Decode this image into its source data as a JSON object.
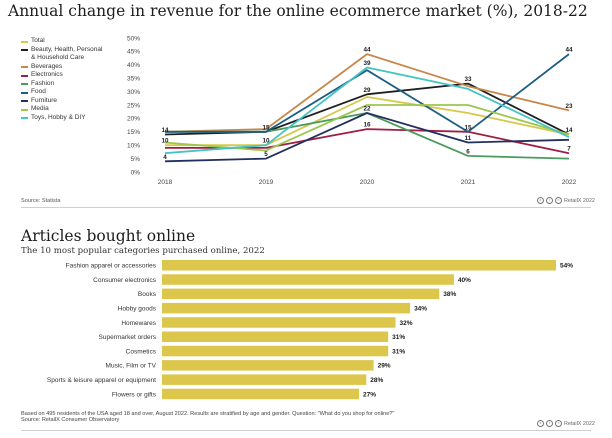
{
  "top": {
    "title": "Annual change in revenue for the online ecommerce market (%), 2018-22",
    "source": "Source: Statista",
    "brand": "RetailX 2022"
  },
  "legend": [
    {
      "name": "Total",
      "color": "#d6c84a"
    },
    {
      "name": "Beauty, Health, Personal",
      "name2": "& Household Care",
      "color": "#1f1f1f"
    },
    {
      "name": "Beverages",
      "color": "#c8874a"
    },
    {
      "name": "Electronics",
      "color": "#a01e44"
    },
    {
      "name": "Fashion",
      "color": "#4a9b5c"
    },
    {
      "name": "Food",
      "color": "#1e5f86"
    },
    {
      "name": "Furniture",
      "color": "#23305f"
    },
    {
      "name": "Media",
      "color": "#9dc64c"
    },
    {
      "name": "Toys, Hobby & DIY",
      "color": "#46c4c4"
    }
  ],
  "bottom": {
    "title": "Articles bought online",
    "subtitle": "The 10 most popular categories purchased online, 2022",
    "note": "Based on 495 residents of the USA aged 18 and over, August 2022. Results are stratified by age and gender. Question: \"What do you shop for online?\"",
    "source": "Source: RetailX Consumer Observatory",
    "brand": "RetailX 2022"
  },
  "chart_data": [
    {
      "type": "line",
      "title": "Annual change in revenue for the online ecommerce market (%), 2018-22",
      "x": [
        "2018",
        "2019",
        "2020",
        "2021",
        "2022"
      ],
      "ylim": [
        0,
        50
      ],
      "yticks": [
        "0%",
        "5%",
        "10%",
        "15%",
        "20%",
        "25%",
        "30%",
        "35%",
        "40%",
        "45%",
        "50%"
      ],
      "grid": false,
      "legend_position": "left",
      "series": [
        {
          "name": "Total",
          "color": "#d6c84a",
          "values": [
            10,
            10,
            28,
            22,
            14
          ]
        },
        {
          "name": "Beauty, Health, Personal & Household Care",
          "color": "#1f1f1f",
          "values": [
            14,
            15,
            29,
            33,
            14
          ]
        },
        {
          "name": "Beverages",
          "color": "#c8874a",
          "values": [
            15,
            16,
            44,
            32,
            23
          ]
        },
        {
          "name": "Electronics",
          "color": "#a01e44",
          "values": [
            9,
            9,
            16,
            15,
            7
          ]
        },
        {
          "name": "Fashion",
          "color": "#4a9b5c",
          "values": [
            15,
            15,
            22,
            6,
            5
          ]
        },
        {
          "name": "Food",
          "color": "#1e5f86",
          "values": [
            15,
            15,
            38,
            15,
            44
          ]
        },
        {
          "name": "Furniture",
          "color": "#23305f",
          "values": [
            4,
            5,
            22,
            11,
            12
          ]
        },
        {
          "name": "Media",
          "color": "#9dc64c",
          "values": [
            11,
            8,
            25,
            25,
            14
          ]
        },
        {
          "name": "Toys, Hobby & DIY",
          "color": "#46c4c4",
          "values": [
            7,
            10,
            39,
            31,
            13
          ]
        }
      ],
      "data_labels": [
        {
          "x": "2018",
          "value": 14,
          "text": "14"
        },
        {
          "x": "2018",
          "value": 10,
          "text": "10"
        },
        {
          "x": "2018",
          "value": 4,
          "text": "4"
        },
        {
          "x": "2019",
          "value": 15,
          "text": "15"
        },
        {
          "x": "2019",
          "value": 10,
          "text": "10"
        },
        {
          "x": "2019",
          "value": 5,
          "text": "5"
        },
        {
          "x": "2020",
          "value": 44,
          "text": "44"
        },
        {
          "x": "2020",
          "value": 39,
          "text": "39"
        },
        {
          "x": "2020",
          "value": 29,
          "text": "29"
        },
        {
          "x": "2020",
          "value": 22,
          "text": "22"
        },
        {
          "x": "2020",
          "value": 16,
          "text": "16"
        },
        {
          "x": "2021",
          "value": 33,
          "text": "33"
        },
        {
          "x": "2021",
          "value": 15,
          "text": "15"
        },
        {
          "x": "2021",
          "value": 11,
          "text": "11"
        },
        {
          "x": "2021",
          "value": 6,
          "text": "6"
        },
        {
          "x": "2022",
          "value": 44,
          "text": "44"
        },
        {
          "x": "2022",
          "value": 23,
          "text": "23"
        },
        {
          "x": "2022",
          "value": 14,
          "text": "14"
        },
        {
          "x": "2022",
          "value": 7,
          "text": "7"
        }
      ]
    },
    {
      "type": "bar",
      "orientation": "horizontal",
      "title": "Articles bought online",
      "subtitle": "The 10 most popular categories purchased online, 2022",
      "bar_color": "#dcc74c",
      "categories": [
        "Fashion apparel or accessories",
        "Consumer electronics",
        "Books",
        "Hobby goods",
        "Homewares",
        "Supermarket orders",
        "Cosmetics",
        "Music, Film or TV",
        "Sports & leisure apparel or equipment",
        "Flowers or gifts"
      ],
      "values": [
        54,
        40,
        38,
        34,
        32,
        31,
        31,
        29,
        28,
        27
      ],
      "value_labels": [
        "54%",
        "40%",
        "38%",
        "34%",
        "32%",
        "31%",
        "31%",
        "29%",
        "28%",
        "27%"
      ],
      "xlim": [
        0,
        54
      ]
    }
  ]
}
